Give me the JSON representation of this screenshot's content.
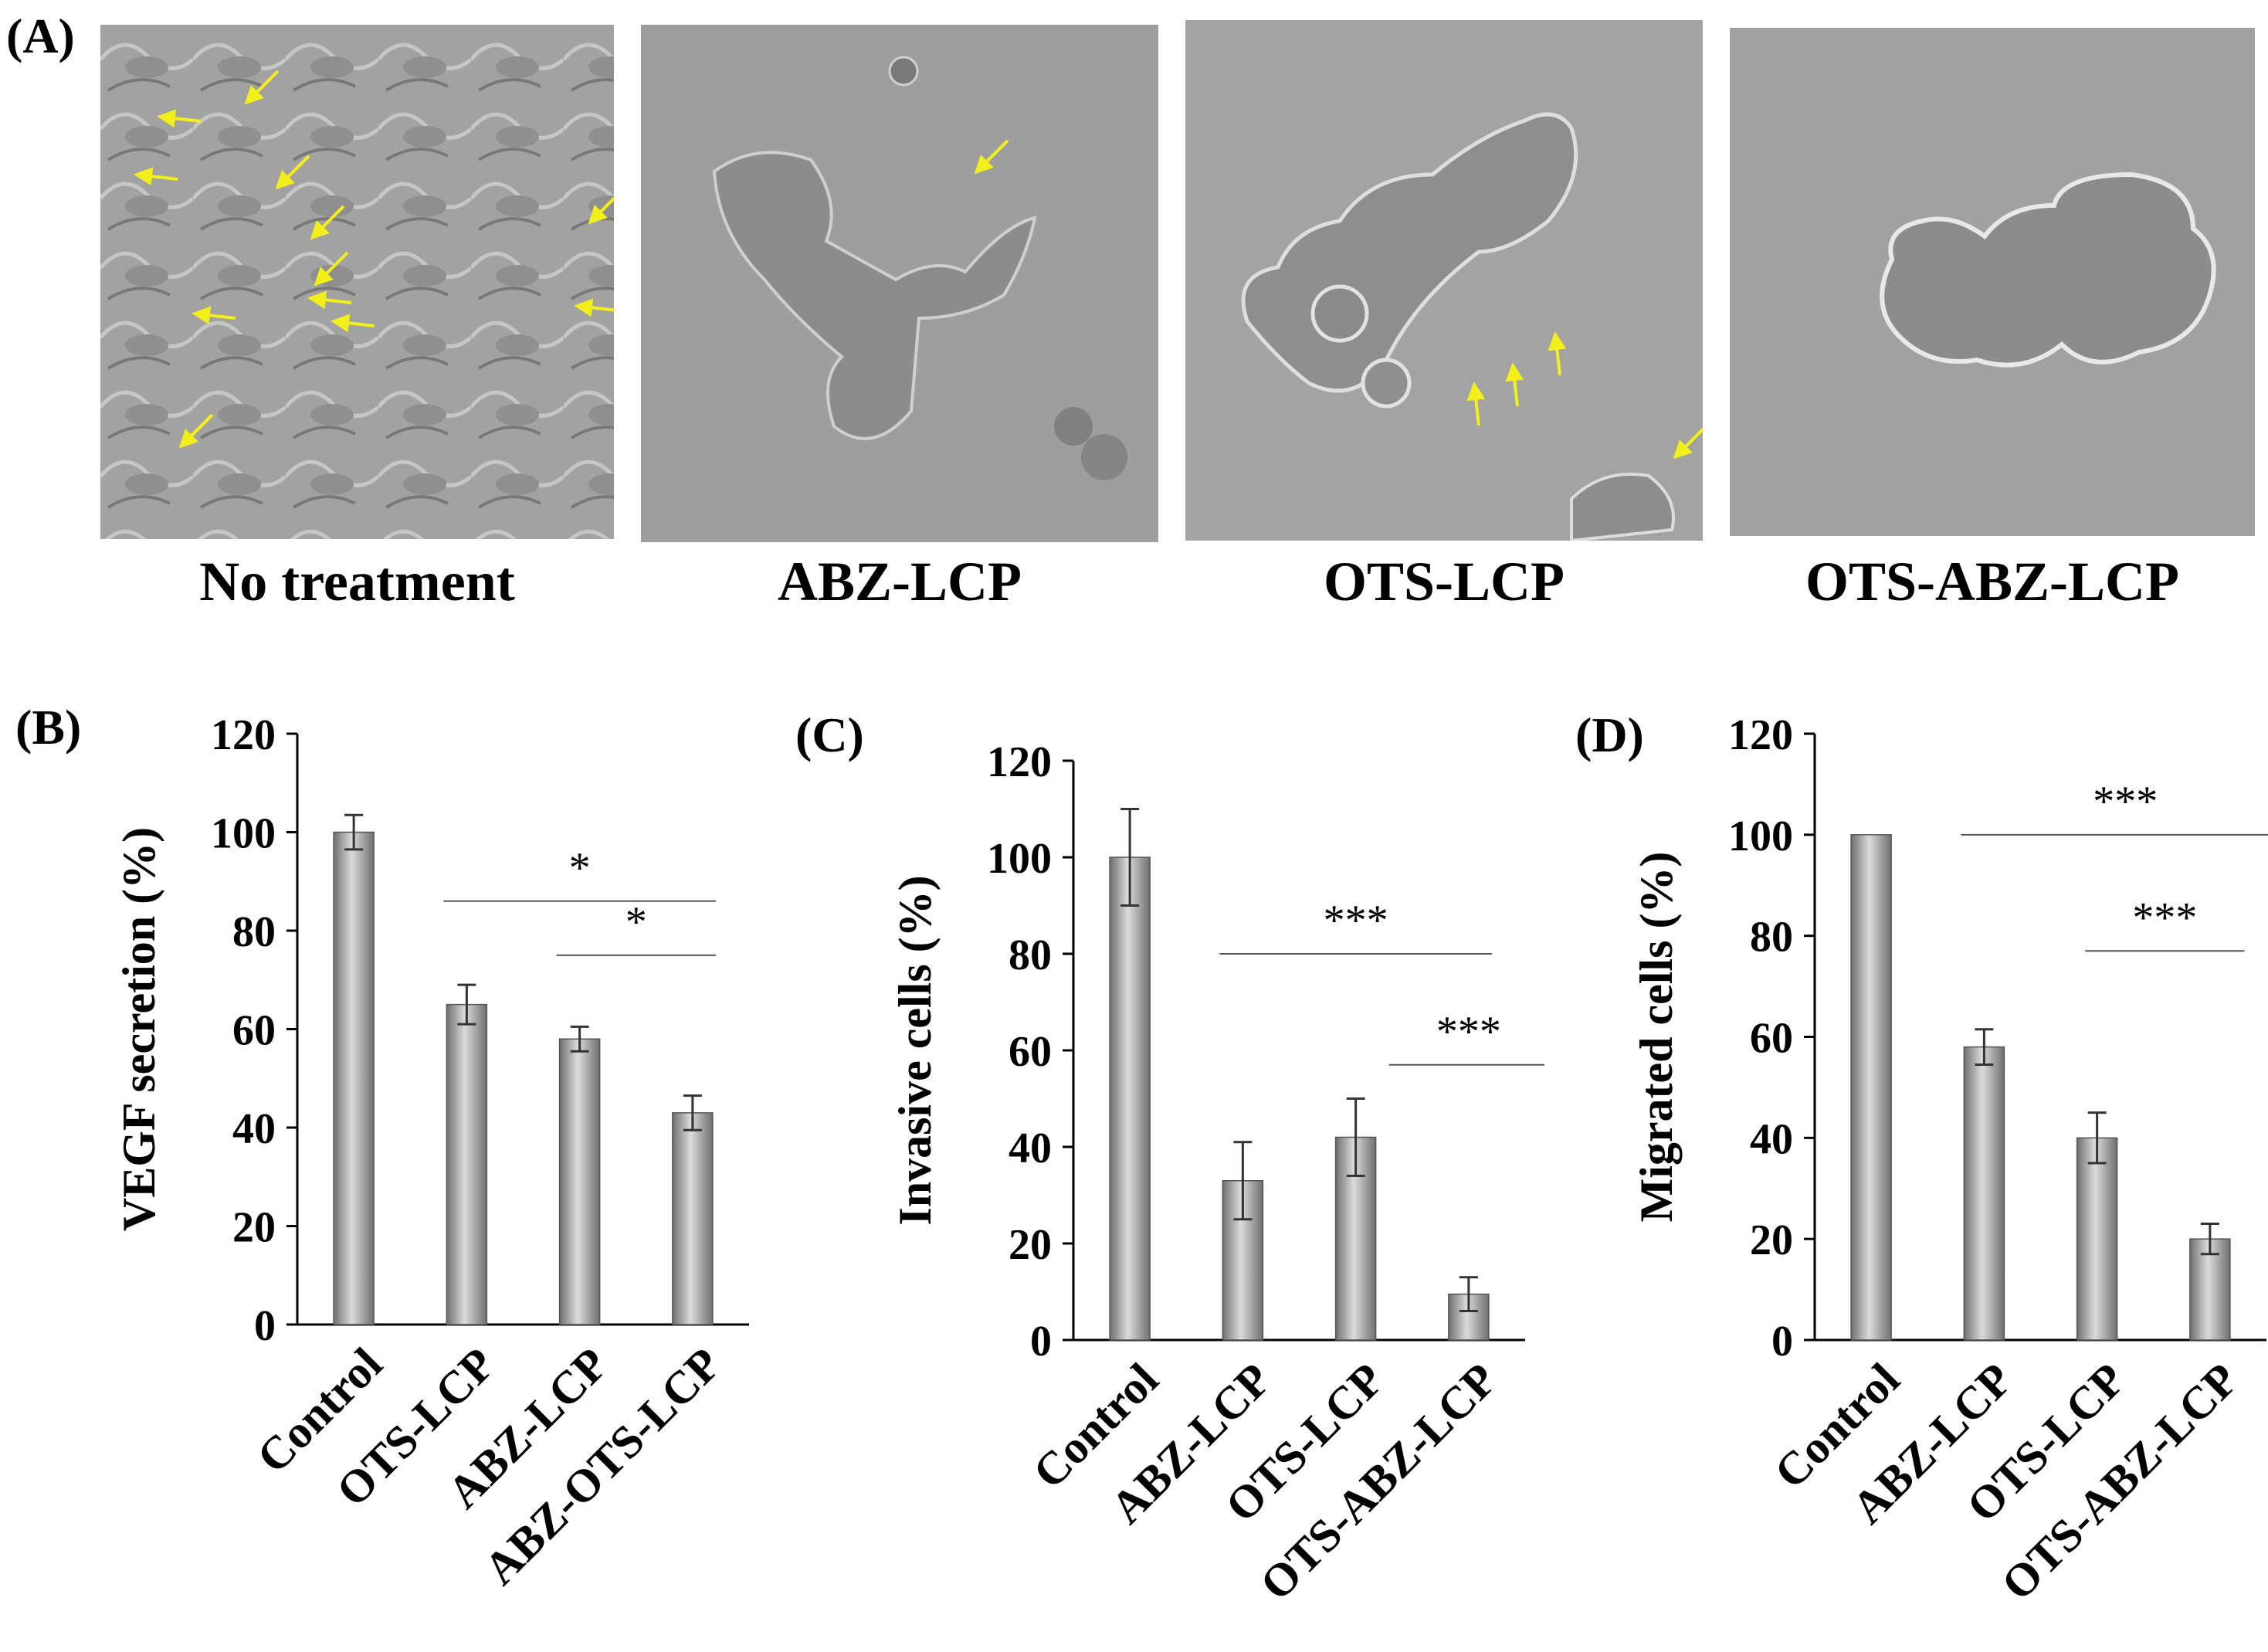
{
  "panels_top": {
    "label": "(A)",
    "images": [
      {
        "caption": "No treatment"
      },
      {
        "caption": "ABZ-LCP"
      },
      {
        "caption": "OTS-LCP"
      },
      {
        "caption": "OTS-ABZ-LCP"
      }
    ]
  },
  "colors": {
    "arrow": "#f2ef1a",
    "bar_dark": "#6f6f6f",
    "bar_light": "#dcdcdc",
    "axis": "#000000"
  },
  "chart_data": [
    {
      "panel": "(B)",
      "type": "bar",
      "ylabel": "VEGF secretion (%)",
      "ylim": [
        0,
        120
      ],
      "yticks": [
        0,
        20,
        40,
        60,
        80,
        100,
        120
      ],
      "categories": [
        "Control",
        "OTS-LCP",
        "ABZ-LCP",
        "ABZ-OTS-LCP"
      ],
      "values": [
        100,
        65,
        58,
        43
      ],
      "errors": [
        3.5,
        4,
        2.5,
        3.5
      ],
      "significance": [
        {
          "from": 1,
          "to": 3,
          "y": 86,
          "label": "*"
        },
        {
          "from": 2,
          "to": 3,
          "y": 75,
          "label": "*"
        }
      ]
    },
    {
      "panel": "(C)",
      "type": "bar",
      "ylabel": "Invasive cells (%)",
      "ylim": [
        0,
        120
      ],
      "yticks": [
        0,
        20,
        40,
        60,
        80,
        100,
        120
      ],
      "categories": [
        "Control",
        "ABZ-LCP",
        "OTS-LCP",
        "OTS-ABZ-LCP"
      ],
      "values": [
        100,
        33,
        42,
        9.5
      ],
      "errors": [
        10,
        8,
        8,
        3.5
      ],
      "significance": [
        {
          "from": 1,
          "to": 3,
          "y": 80,
          "label": "***"
        },
        {
          "from": 2.5,
          "to": 3.5,
          "y": 57,
          "label": "***"
        }
      ]
    },
    {
      "panel": "(D)",
      "type": "bar",
      "ylabel": "Migrated cells (%)",
      "ylim": [
        0,
        120
      ],
      "yticks": [
        0,
        20,
        40,
        60,
        80,
        100,
        120
      ],
      "categories": [
        "Control",
        "ABZ-LCP",
        "OTS-LCP",
        "OTS-ABZ-LCP"
      ],
      "values": [
        100,
        58,
        40,
        20
      ],
      "errors": [
        0,
        3.5,
        5,
        3
      ],
      "significance": [
        {
          "from": 1,
          "to": 3.5,
          "y": 100,
          "label": "***"
        },
        {
          "from": 2.1,
          "to": 3.1,
          "y": 77,
          "label": "***"
        }
      ]
    }
  ]
}
